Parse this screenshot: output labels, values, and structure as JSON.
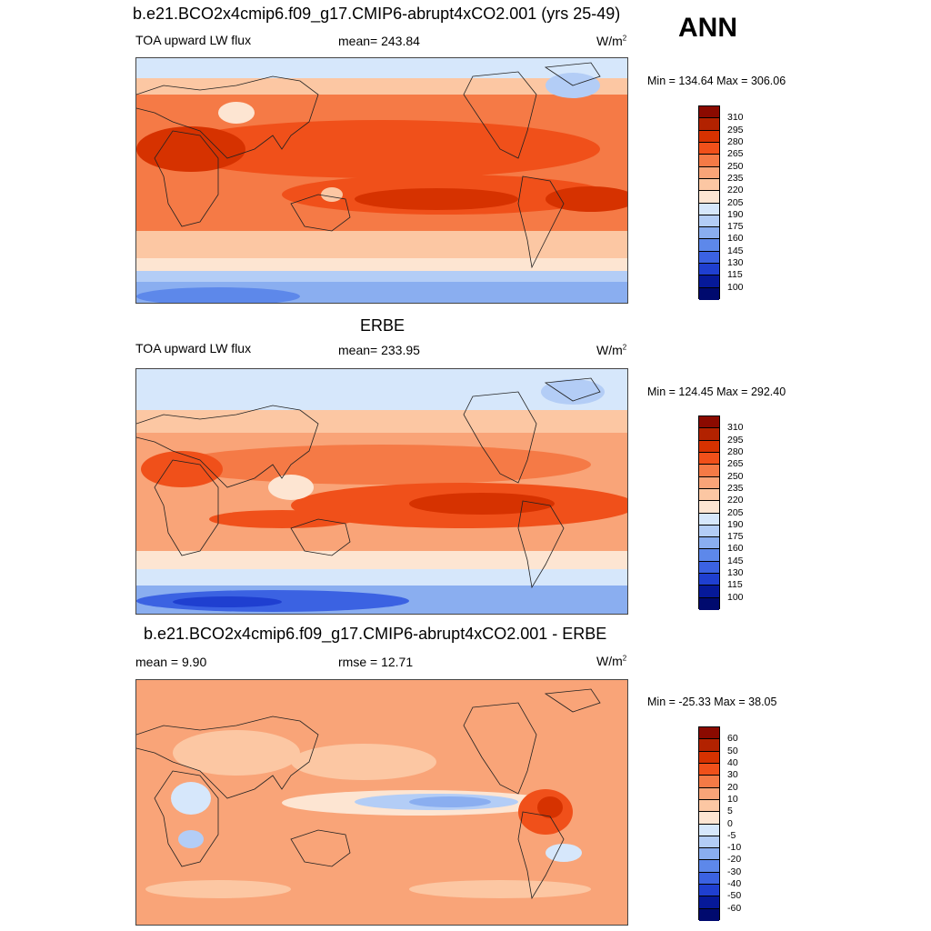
{
  "season": "ANN",
  "panels": [
    {
      "title": "b.e21.BCO2x4cmip6.f09_g17.CMIP6-abrupt4xCO2.001 (yrs 25-49)",
      "left_label": "TOA upward LW flux",
      "mid_label": "mean= 243.84",
      "units": "W/m",
      "units_sup": "2",
      "minmax": "Min = 134.64 Max = 306.06",
      "levels": [
        "310",
        "295",
        "280",
        "265",
        "250",
        "235",
        "220",
        "205",
        "190",
        "175",
        "160",
        "145",
        "130",
        "115",
        "100"
      ],
      "colors": [
        "#8b0a00",
        "#b22200",
        "#d63200",
        "#f0501a",
        "#f57a46",
        "#f9a478",
        "#fcc7a3",
        "#fde5d2",
        "#d6e7fb",
        "#b3cdf6",
        "#8aaef0",
        "#5d88ea",
        "#3b62e2",
        "#1f3fd0",
        "#061999",
        "#000a6e"
      ]
    },
    {
      "title": "ERBE",
      "left_label": "TOA upward LW flux",
      "mid_label": "mean= 233.95",
      "units": "W/m",
      "units_sup": "2",
      "minmax": "Min = 124.45 Max = 292.40",
      "levels": [
        "310",
        "295",
        "280",
        "265",
        "250",
        "235",
        "220",
        "205",
        "190",
        "175",
        "160",
        "145",
        "130",
        "115",
        "100"
      ],
      "colors": [
        "#8b0a00",
        "#b22200",
        "#d63200",
        "#f0501a",
        "#f57a46",
        "#f9a478",
        "#fcc7a3",
        "#fde5d2",
        "#d6e7fb",
        "#b3cdf6",
        "#8aaef0",
        "#5d88ea",
        "#3b62e2",
        "#1f3fd0",
        "#061999",
        "#000a6e"
      ]
    },
    {
      "title": "b.e21.BCO2x4cmip6.f09_g17.CMIP6-abrupt4xCO2.001 - ERBE",
      "left_label": "mean =   9.90",
      "mid_label": "rmse =  12.71",
      "units": "W/m",
      "units_sup": "2",
      "minmax": "Min = -25.33 Max =  38.05",
      "levels": [
        "60",
        "50",
        "40",
        "30",
        "20",
        "10",
        "5",
        "0",
        "-5",
        "-10",
        "-20",
        "-30",
        "-40",
        "-50",
        "-60"
      ],
      "colors": [
        "#8b0a00",
        "#b22200",
        "#d63200",
        "#f0501a",
        "#f57a46",
        "#f9a478",
        "#fcc7a3",
        "#fde5d2",
        "#d6e7fb",
        "#b3cdf6",
        "#8aaef0",
        "#5d88ea",
        "#3b62e2",
        "#1f3fd0",
        "#061999",
        "#000a6e"
      ]
    }
  ]
}
